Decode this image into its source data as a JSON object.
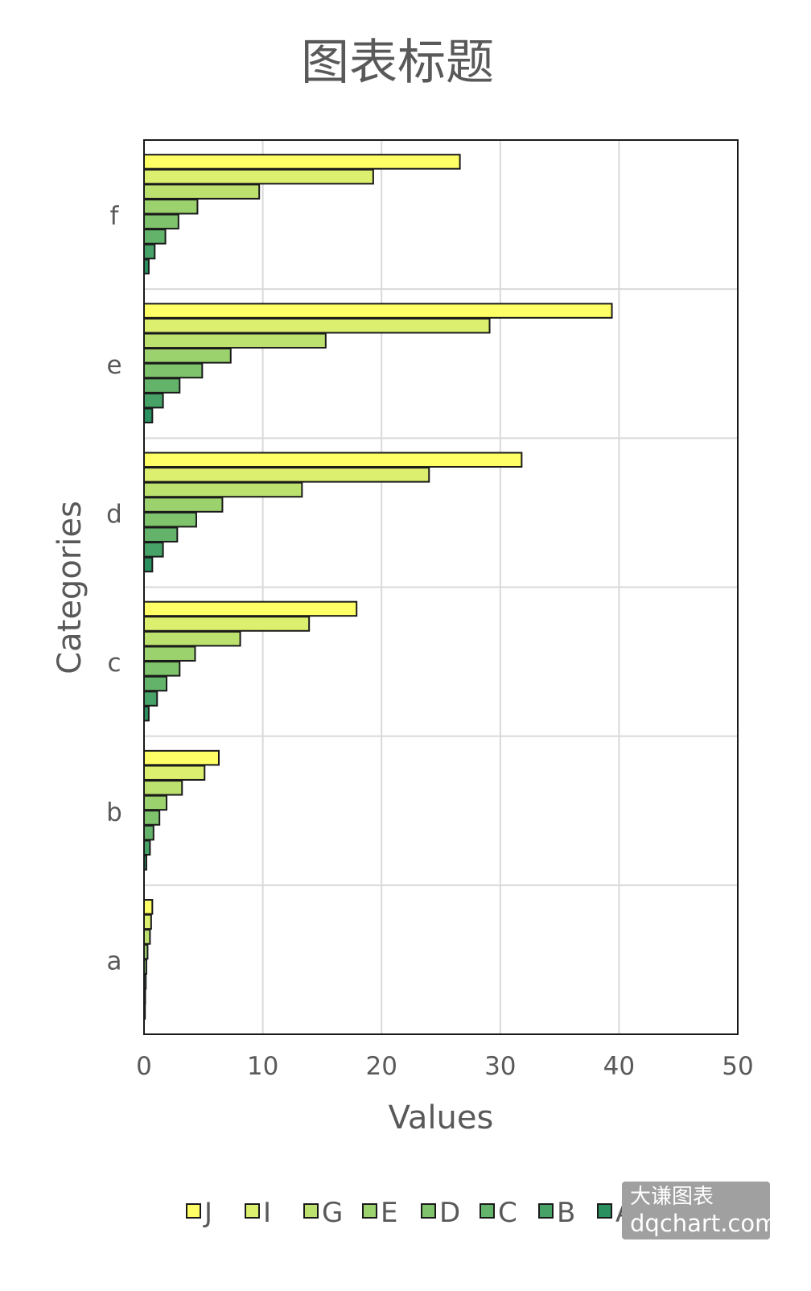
{
  "chart_data": {
    "type": "bar",
    "orientation": "horizontal",
    "title": "图表标题",
    "xlabel": "Values",
    "ylabel": "Categories",
    "categories": [
      "a",
      "b",
      "c",
      "d",
      "e",
      "f"
    ],
    "xlim": [
      0,
      50
    ],
    "xticks": [
      "0",
      "10",
      "20",
      "30",
      "40",
      "50"
    ],
    "grid": true,
    "legend_position": "bottom",
    "series": [
      {
        "name": "J",
        "color": "#ffff66",
        "values": [
          0.7,
          6.3,
          17.9,
          31.8,
          39.4,
          26.6
        ]
      },
      {
        "name": "I",
        "color": "#dcef6e",
        "values": [
          0.6,
          5.1,
          13.9,
          24.0,
          29.1,
          19.3
        ]
      },
      {
        "name": "G",
        "color": "#bde16f",
        "values": [
          0.5,
          3.2,
          8.1,
          13.3,
          15.3,
          9.7
        ]
      },
      {
        "name": "E",
        "color": "#9cd26e",
        "values": [
          0.3,
          1.9,
          4.3,
          6.6,
          7.3,
          4.5
        ]
      },
      {
        "name": "D",
        "color": "#7fc36c",
        "values": [
          0.2,
          1.3,
          3.0,
          4.4,
          4.9,
          2.9
        ]
      },
      {
        "name": "C",
        "color": "#63b46a",
        "values": [
          0.15,
          0.8,
          1.9,
          2.8,
          3.0,
          1.8
        ]
      },
      {
        "name": "B",
        "color": "#46a267",
        "values": [
          0.1,
          0.5,
          1.1,
          1.6,
          1.6,
          0.9
        ]
      },
      {
        "name": "A",
        "color": "#2a9060",
        "values": [
          0.05,
          0.2,
          0.4,
          0.7,
          0.7,
          0.4
        ]
      }
    ]
  },
  "watermark": {
    "line1": "大谦图表",
    "line2": "dqchart.com"
  }
}
